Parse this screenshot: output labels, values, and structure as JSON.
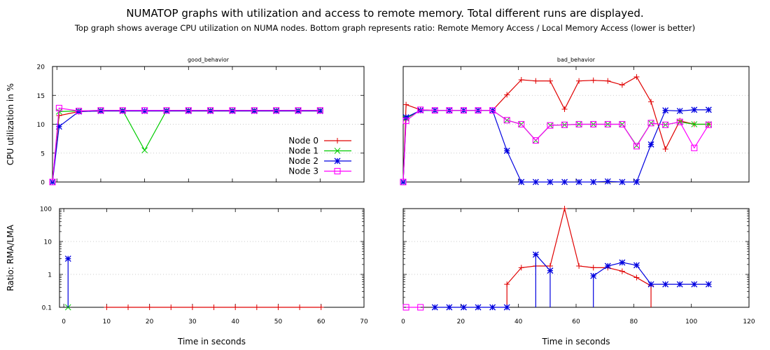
{
  "title": "NUMATOP graphs with utilization and access to remote memory. Total  different runs are displayed.",
  "subtitle": "Top graph shows average CPU utilization on NUMA nodes. Bottom graph represents ratio: Remote Memory Access / Local Memory Access (lower is better)",
  "chart_data": [
    {
      "type": "line",
      "title": "good_behavior",
      "ylabel": "CPU utilization in %",
      "xlabel": "",
      "xlim": [
        -1,
        70
      ],
      "ylim": [
        0,
        20
      ],
      "yticks": [
        "0",
        "5",
        "10",
        "15",
        "20"
      ],
      "grid": true,
      "legend": "bottom-right",
      "series": [
        {
          "name": "Node 0",
          "color": "#e00000",
          "marker": "plus",
          "x": [
            -1,
            0.5,
            5,
            10,
            15,
            20,
            25,
            30,
            35,
            40,
            45,
            50,
            55,
            60
          ],
          "y": [
            0,
            11.5,
            12.2,
            12.3,
            12.3,
            12.3,
            12.3,
            12.3,
            12.3,
            12.3,
            12.3,
            12.3,
            12.3,
            12.3
          ]
        },
        {
          "name": "Node 1",
          "color": "#00cc00",
          "marker": "x",
          "x": [
            -1,
            0.5,
            5,
            10,
            15,
            20,
            25,
            30,
            35,
            40,
            45,
            50,
            55,
            60
          ],
          "y": [
            0,
            12.2,
            12.3,
            12.4,
            12.4,
            5.5,
            12.4,
            12.4,
            12.4,
            12.4,
            12.4,
            12.4,
            12.4,
            12.4
          ]
        },
        {
          "name": "Node 2",
          "color": "#0000e0",
          "marker": "star",
          "x": [
            -1,
            0.5,
            5,
            10,
            15,
            20,
            25,
            30,
            35,
            40,
            45,
            50,
            55,
            60
          ],
          "y": [
            0,
            9.6,
            12.2,
            12.3,
            12.3,
            12.3,
            12.3,
            12.3,
            12.3,
            12.3,
            12.3,
            12.3,
            12.3,
            12.3
          ]
        },
        {
          "name": "Node 3",
          "color": "#ff00ff",
          "marker": "square",
          "x": [
            -1,
            0.5,
            5,
            10,
            15,
            20,
            25,
            30,
            35,
            40,
            45,
            50,
            55,
            60
          ],
          "y": [
            0,
            12.8,
            12.3,
            12.4,
            12.4,
            12.4,
            12.4,
            12.4,
            12.4,
            12.4,
            12.4,
            12.4,
            12.4,
            12.4
          ]
        }
      ]
    },
    {
      "type": "line",
      "title": "bad_behavior",
      "ylabel": "",
      "xlabel": "",
      "xlim": [
        0,
        120
      ],
      "ylim": [
        0,
        20
      ],
      "yticks": [],
      "grid": true,
      "series": [
        {
          "name": "Node 0",
          "color": "#e00000",
          "marker": "plus",
          "x": [
            0,
            1,
            6,
            11,
            16,
            21,
            26,
            31,
            36,
            41,
            46,
            51,
            56,
            61,
            66,
            71,
            76,
            81,
            86,
            91,
            96,
            101,
            106
          ],
          "y": [
            0,
            13.4,
            12.5,
            12.4,
            12.4,
            12.4,
            12.4,
            12.4,
            15.1,
            17.7,
            17.5,
            17.5,
            12.6,
            17.5,
            17.6,
            17.5,
            16.8,
            18.2,
            13.9,
            5.7,
            10.6,
            10.0,
            10.0
          ]
        },
        {
          "name": "Node 1",
          "color": "#00cc00",
          "marker": "x",
          "x": [
            0,
            1,
            6,
            11,
            16,
            21,
            26,
            31,
            36,
            41,
            46,
            51,
            56,
            61,
            66,
            71,
            76,
            81,
            86,
            91,
            96,
            101,
            106
          ],
          "y": [
            0,
            11.0,
            12.4,
            12.4,
            12.4,
            12.4,
            12.4,
            12.4,
            10.7,
            10.0,
            7.2,
            9.8,
            9.9,
            10.0,
            10.0,
            10.0,
            10.0,
            6.3,
            10.2,
            9.9,
            10.4,
            10.0,
            10.0
          ]
        },
        {
          "name": "Node 2",
          "color": "#0000e0",
          "marker": "star",
          "x": [
            0,
            1,
            6,
            11,
            16,
            21,
            26,
            31,
            36,
            41,
            46,
            51,
            56,
            61,
            66,
            71,
            76,
            81,
            86,
            91,
            96,
            101,
            106
          ],
          "y": [
            0,
            11.2,
            12.4,
            12.4,
            12.4,
            12.4,
            12.4,
            12.4,
            5.4,
            0,
            0,
            0,
            0,
            0,
            0,
            0.1,
            0,
            0,
            6.5,
            12.4,
            12.3,
            12.5,
            12.5
          ]
        },
        {
          "name": "Node 3",
          "color": "#ff00ff",
          "marker": "square",
          "x": [
            0,
            1,
            6,
            11,
            16,
            21,
            26,
            31,
            36,
            41,
            46,
            51,
            56,
            61,
            66,
            71,
            76,
            81,
            86,
            91,
            96,
            101,
            106
          ],
          "y": [
            0,
            10.6,
            12.5,
            12.4,
            12.4,
            12.4,
            12.4,
            12.4,
            10.7,
            10.0,
            7.2,
            9.8,
            9.9,
            10.0,
            10.0,
            10.0,
            10.0,
            6.2,
            10.2,
            9.9,
            10.4,
            5.9,
            9.9
          ]
        }
      ]
    },
    {
      "type": "line",
      "title": "",
      "ylabel": "Ratio: RMA/LMA",
      "xlabel": "Time in seconds",
      "xlim": [
        -1,
        70
      ],
      "ylim": [
        0.1,
        100
      ],
      "log_y": true,
      "yticks": [
        "0.1",
        "1",
        "10",
        "100"
      ],
      "xticks": [
        "0",
        "10",
        "20",
        "30",
        "40",
        "50",
        "60",
        "70"
      ],
      "grid": true,
      "series": [
        {
          "name": "Node 0",
          "color": "#e00000",
          "marker": "plus",
          "x": [
            10,
            15,
            20,
            25,
            30,
            35,
            40,
            45,
            50,
            55,
            60
          ],
          "y": [
            0.1,
            0.1,
            0.1,
            0.1,
            0.1,
            0.1,
            0.1,
            0.1,
            0.1,
            0.1,
            0.1
          ]
        },
        {
          "name": "Node 1",
          "color": "#00cc00",
          "marker": "x",
          "x": [
            1
          ],
          "y": [
            0.1
          ]
        },
        {
          "name": "Node 2",
          "color": "#0000e0",
          "marker": "star",
          "x": [
            1
          ],
          "y": [
            3
          ],
          "drop": true
        }
      ]
    },
    {
      "type": "line",
      "title": "",
      "ylabel": "",
      "xlabel": "Time in seconds",
      "xlim": [
        0,
        120
      ],
      "ylim": [
        0.1,
        100
      ],
      "log_y": true,
      "yticks": [],
      "xticks": [
        "0",
        "20",
        "40",
        "60",
        "80",
        "100",
        "120"
      ],
      "grid": true,
      "series": [
        {
          "name": "Node 0",
          "color": "#e00000",
          "marker": "plus",
          "segments": [
            {
              "x": [
                36,
                41,
                46,
                51,
                56,
                61,
                66,
                71,
                76,
                81,
                86
              ],
              "y": [
                0.5,
                1.6,
                1.8,
                1.8,
                100,
                1.8,
                1.6,
                1.6,
                1.25,
                0.8,
                0.45
              ]
            }
          ],
          "drops": [
            36,
            86
          ]
        },
        {
          "name": "Node 3",
          "color": "#ff00ff",
          "marker": "square",
          "segments": [
            {
              "x": [
                1,
                6
              ],
              "y": [
                0.1,
                0.1
              ]
            }
          ]
        },
        {
          "name": "Node 2",
          "color": "#0000e0",
          "marker": "star",
          "segments": [
            {
              "x": [
                11,
                16,
                21,
                26,
                31,
                36
              ],
              "y": [
                0.1,
                0.1,
                0.1,
                0.1,
                0.1,
                0.1
              ]
            },
            {
              "x": [
                46,
                51
              ],
              "y": [
                4,
                1.3
              ]
            },
            {
              "x": [
                66,
                71,
                76,
                81,
                86,
                91,
                96,
                101,
                106
              ],
              "y": [
                0.9,
                1.8,
                2.3,
                1.9,
                0.5,
                0.5,
                0.5,
                0.5,
                0.5
              ]
            }
          ],
          "drops": [
            46,
            51,
            66
          ]
        }
      ]
    }
  ]
}
